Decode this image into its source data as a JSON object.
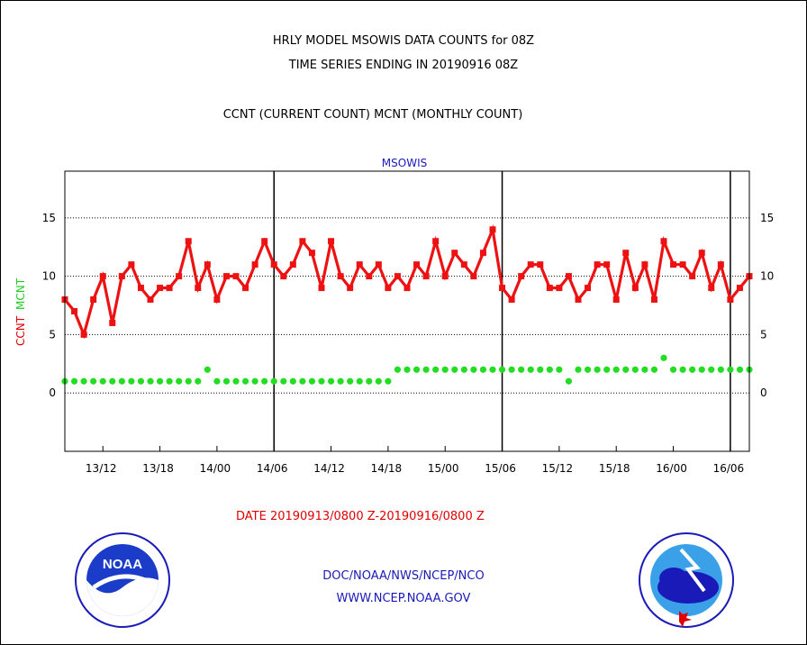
{
  "titles": {
    "line1": "HRLY MODEL MSOWIS DATA COUNTS for 08Z",
    "line2": "TIME SERIES ENDING IN 20190916 08Z",
    "line3": "CCNT (CURRENT COUNT) MCNT (MONTHLY COUNT)"
  },
  "y_axis_labels": {
    "ccnt": "CCNT",
    "mcnt": "MCNT"
  },
  "date_range": "DATE 20190913/0800 Z-20190916/0800 Z",
  "credits": {
    "line1": "DOC/NOAA/NWS/NCEP/NCO",
    "line2": "WWW.NCEP.NOAA.GOV"
  },
  "logos": {
    "left": {
      "icon": "noaa-logo",
      "text": "NOAA"
    },
    "right": {
      "icon": "nws-logo"
    }
  },
  "colors": {
    "ccnt": "#ee1111",
    "mcnt": "#22dd22",
    "date_text": "#e00000",
    "credit_text": "#1a1ab8",
    "panel_title": "#1a1ab8"
  },
  "chart_data": {
    "type": "line",
    "title": "MSOWIS",
    "x_start": "2019-09-13 08Z",
    "x_end": "2019-09-16 08Z",
    "x_step_hours": 1,
    "x_tick_labels": [
      "13/12",
      "13/18",
      "14/00",
      "14/06",
      "14/12",
      "14/18",
      "15/00",
      "15/06",
      "15/12",
      "15/18",
      "16/00",
      "16/06"
    ],
    "day_boundaries": [
      "14/06",
      "15/06",
      "16/06"
    ],
    "ylim": [
      -5,
      19
    ],
    "y_ticks": [
      0,
      5,
      10,
      15
    ],
    "grid_y": [
      0,
      5,
      10,
      15
    ],
    "series": [
      {
        "name": "CCNT",
        "marker": "square",
        "values": [
          8,
          7,
          5,
          8,
          10,
          6,
          10,
          11,
          9,
          8,
          9,
          9,
          10,
          13,
          9,
          11,
          8,
          10,
          10,
          9,
          11,
          13,
          11,
          10,
          11,
          13,
          12,
          9,
          13,
          10,
          9,
          11,
          10,
          11,
          9,
          10,
          9,
          11,
          10,
          13,
          10,
          12,
          11,
          10,
          12,
          14,
          9,
          8,
          10,
          11,
          11,
          9,
          9,
          10,
          8,
          9,
          11,
          11,
          8,
          12,
          9,
          11,
          8,
          13,
          11,
          11,
          10,
          12,
          9,
          11,
          8,
          9,
          10
        ]
      },
      {
        "name": "MCNT",
        "marker": "circle",
        "values": [
          1,
          1,
          1,
          1,
          1,
          1,
          1,
          1,
          1,
          1,
          1,
          1,
          1,
          1,
          1,
          2,
          1,
          1,
          1,
          1,
          1,
          1,
          1,
          1,
          1,
          1,
          1,
          1,
          1,
          1,
          1,
          1,
          1,
          1,
          1,
          2,
          2,
          2,
          2,
          2,
          2,
          2,
          2,
          2,
          2,
          2,
          2,
          2,
          2,
          2,
          2,
          2,
          2,
          1,
          2,
          2,
          2,
          2,
          2,
          2,
          2,
          2,
          2,
          3,
          2,
          2,
          2,
          2,
          2,
          2,
          2,
          2,
          2
        ]
      }
    ]
  }
}
